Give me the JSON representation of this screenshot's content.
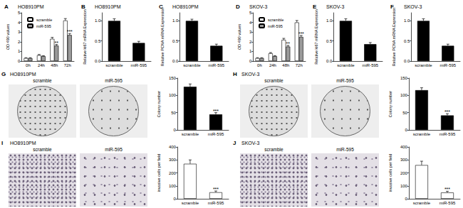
{
  "chart_data": [
    {
      "panel": "A",
      "title": "HO8910PM",
      "type": "bar",
      "categories": [
        "0h",
        "24h",
        "48h",
        "72h"
      ],
      "ylabel": "OD 490 values",
      "ylim": [
        0,
        5
      ],
      "yticks": [
        0,
        1,
        2,
        3,
        4,
        5
      ],
      "grid": false,
      "legend": "upper left",
      "series": [
        {
          "name": "scramble",
          "color": "#ffffff",
          "values": [
            0.3,
            0.6,
            2.3,
            4.2
          ],
          "errors": [
            0.05,
            0.08,
            0.15,
            0.2
          ]
        },
        {
          "name": "miR-595",
          "color": "#9a9a9a",
          "values": [
            0.3,
            0.5,
            1.6,
            2.7
          ],
          "errors": [
            0.05,
            0.06,
            0.12,
            0.15
          ],
          "annotations": [
            null,
            null,
            "**",
            "***"
          ]
        }
      ]
    },
    {
      "panel": "B",
      "title": "HO8910PM",
      "type": "bar",
      "categories": [
        "scramble",
        "miR-595"
      ],
      "ylabel": "Relative ki67 mRNA Expression",
      "ylim": [
        0,
        1.2
      ],
      "yticks": [
        {
          "value": 0,
          "label": "0.0"
        },
        0.5,
        {
          "value": 1,
          "label": "1.0"
        }
      ],
      "grid": false,
      "series": [
        {
          "color": "#000000",
          "values": [
            1.0,
            0.45
          ],
          "errors": [
            0.05,
            0.04
          ]
        }
      ]
    },
    {
      "panel": "C",
      "title": "HO8910PM",
      "type": "bar",
      "categories": [
        "scramble",
        "miR-595"
      ],
      "ylabel": "Relative PCNA mRNA Expression",
      "ylim": [
        0,
        1.2
      ],
      "yticks": [
        {
          "value": 0,
          "label": "0.0"
        },
        0.5,
        {
          "value": 1,
          "label": "1.0"
        }
      ],
      "grid": false,
      "series": [
        {
          "color": "#000000",
          "values": [
            1.0,
            0.38
          ],
          "errors": [
            0.04,
            0.04
          ]
        }
      ]
    },
    {
      "panel": "D",
      "title": "SKOV-3",
      "type": "bar",
      "categories": [
        "0h",
        "24h",
        "48h",
        "72h"
      ],
      "ylabel": "OD 490 values",
      "ylim": [
        0,
        5
      ],
      "yticks": [
        0,
        1,
        2,
        3,
        4,
        5
      ],
      "grid": false,
      "legend": "upper left",
      "series": [
        {
          "name": "scramble",
          "color": "#ffffff",
          "values": [
            0.3,
            0.8,
            2.2,
            4.0
          ],
          "errors": [
            0.05,
            0.08,
            0.15,
            0.2
          ]
        },
        {
          "name": "miR-595",
          "color": "#9a9a9a",
          "values": [
            0.3,
            0.5,
            1.5,
            2.5
          ],
          "errors": [
            0.05,
            0.06,
            0.12,
            0.15
          ],
          "annotations": [
            null,
            null,
            "**",
            "***"
          ]
        }
      ]
    },
    {
      "panel": "E",
      "title": "SKOV-3",
      "type": "bar",
      "categories": [
        "scramble",
        "miR-595"
      ],
      "ylabel": "Relative ki67 mRNA Expression",
      "ylim": [
        0,
        1.2
      ],
      "yticks": [
        {
          "value": 0,
          "label": "0.0"
        },
        0.5,
        {
          "value": 1,
          "label": "1.0"
        }
      ],
      "grid": false,
      "series": [
        {
          "color": "#000000",
          "values": [
            1.0,
            0.42
          ],
          "errors": [
            0.05,
            0.04
          ]
        }
      ]
    },
    {
      "panel": "F",
      "title": "SKOV-3",
      "type": "bar",
      "categories": [
        "scramble",
        "miR-595"
      ],
      "ylabel": "Relative PCNA mRNA Expression",
      "ylim": [
        0,
        1.2
      ],
      "yticks": [
        {
          "value": 0,
          "label": "0.0"
        },
        0.5,
        {
          "value": 1,
          "label": "1.0"
        }
      ],
      "grid": false,
      "series": [
        {
          "color": "#000000",
          "values": [
            1.0,
            0.38
          ],
          "errors": [
            0.05,
            0.04
          ]
        }
      ]
    },
    {
      "panel": "G",
      "title": "HO8910PM",
      "type": "bar",
      "image_labels": [
        "scramble",
        "miR-595"
      ],
      "categories": [
        "scramble",
        "miR-595"
      ],
      "ylabel": "Colony number",
      "ylim": [
        0,
        150
      ],
      "yticks": [
        0,
        50,
        100,
        150
      ],
      "grid": false,
      "series": [
        {
          "color": "#000000",
          "values": [
            125,
            45
          ],
          "errors": [
            8,
            5
          ],
          "annotations": [
            null,
            "***"
          ]
        }
      ]
    },
    {
      "panel": "H",
      "title": "SKOV-3",
      "type": "bar",
      "image_labels": [
        "scramble",
        "miR-595"
      ],
      "categories": [
        "scramble",
        "miR-595"
      ],
      "ylabel": "Colony number",
      "ylim": [
        0,
        150
      ],
      "yticks": [
        0,
        50,
        100,
        150
      ],
      "grid": false,
      "series": [
        {
          "color": "#000000",
          "values": [
            115,
            42
          ],
          "errors": [
            7,
            5
          ],
          "annotations": [
            null,
            "***"
          ]
        }
      ]
    },
    {
      "panel": "I",
      "title": "HO8910PM",
      "type": "bar",
      "image_labels": [
        "scramble",
        "miR-595"
      ],
      "categories": [
        "scramble",
        "miR-595"
      ],
      "ylabel": "invasive cells per field",
      "ylim": [
        0,
        400
      ],
      "yticks": [
        0,
        100,
        200,
        300,
        400
      ],
      "grid": false,
      "series": [
        {
          "color": "#ffffff",
          "values": [
            270,
            50
          ],
          "errors": [
            30,
            10
          ],
          "annotations": [
            null,
            "***"
          ]
        }
      ]
    },
    {
      "panel": "J",
      "title": "SKOV-3",
      "type": "bar",
      "image_labels": [
        "scramble",
        "miR-595"
      ],
      "categories": [
        "scramble",
        "miR-595"
      ],
      "ylabel": "invasive cells per field",
      "ylim": [
        0,
        400
      ],
      "yticks": [
        0,
        100,
        200,
        300,
        400
      ],
      "grid": false,
      "series": [
        {
          "color": "#ffffff",
          "values": [
            260,
            48
          ],
          "errors": [
            30,
            10
          ],
          "annotations": [
            null,
            "***"
          ]
        }
      ]
    }
  ]
}
